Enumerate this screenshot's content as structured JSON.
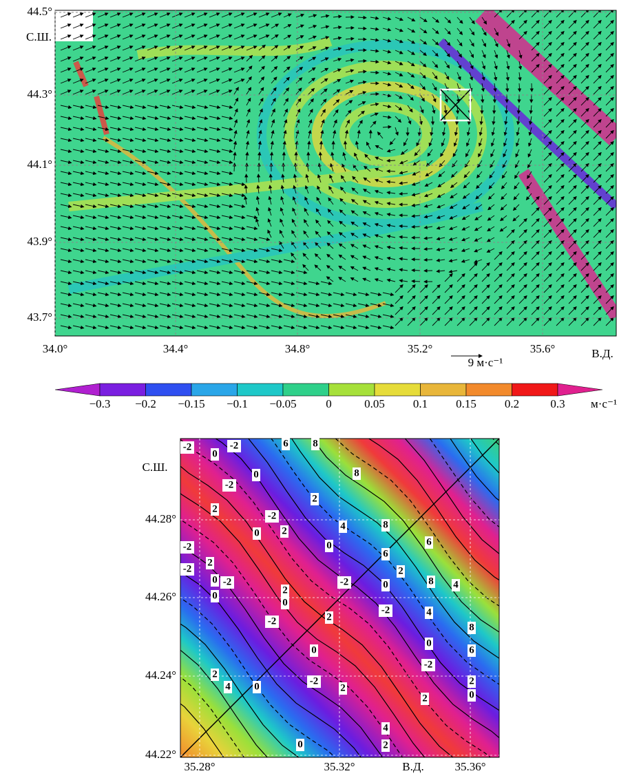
{
  "map_top": {
    "lat_labels": [
      "44.5°",
      "44.3°",
      "44.1°",
      "43.9°",
      "43.7°"
    ],
    "lat_unit": "С.Ш.",
    "lon_labels": [
      "34.0°",
      "34.4°",
      "34.8°",
      "35.2°",
      "35.6°"
    ],
    "lon_unit": "В.Д.",
    "scale_label": "9 м·с⁻¹"
  },
  "colorbar": {
    "ticks": [
      "−0.3",
      "−0.2",
      "−0.15",
      "−0.1",
      "−0.05",
      "0",
      "0.05",
      "0.1",
      "0.15",
      "0.2",
      "0.3"
    ],
    "unit": "м·с⁻¹"
  },
  "map_bottom": {
    "lat_labels": [
      "44.28°",
      "44.26°",
      "44.24°",
      "44.22°"
    ],
    "lat_unit": "С.Ш.",
    "lon_labels": [
      "35.28°",
      "35.32°",
      "35.36°"
    ],
    "lon_unit": "В.Д.",
    "contour_labels": [
      "-2",
      "0",
      "-2",
      "6",
      "8",
      "8",
      "0",
      "-2",
      "2",
      "2",
      "-2",
      "2",
      "0",
      "4",
      "8",
      "-2",
      "0",
      "6",
      "6",
      "2",
      "-2",
      "0",
      "-2",
      "-2",
      "0",
      "2",
      "8",
      "4",
      "0",
      "2",
      "0",
      "-2",
      "4",
      "2",
      "-2",
      "8",
      "6",
      "0",
      "0",
      "-2",
      "2",
      "4",
      "0",
      "-2",
      "2",
      "2",
      "0",
      "2",
      "4",
      "2",
      "0"
    ]
  }
}
